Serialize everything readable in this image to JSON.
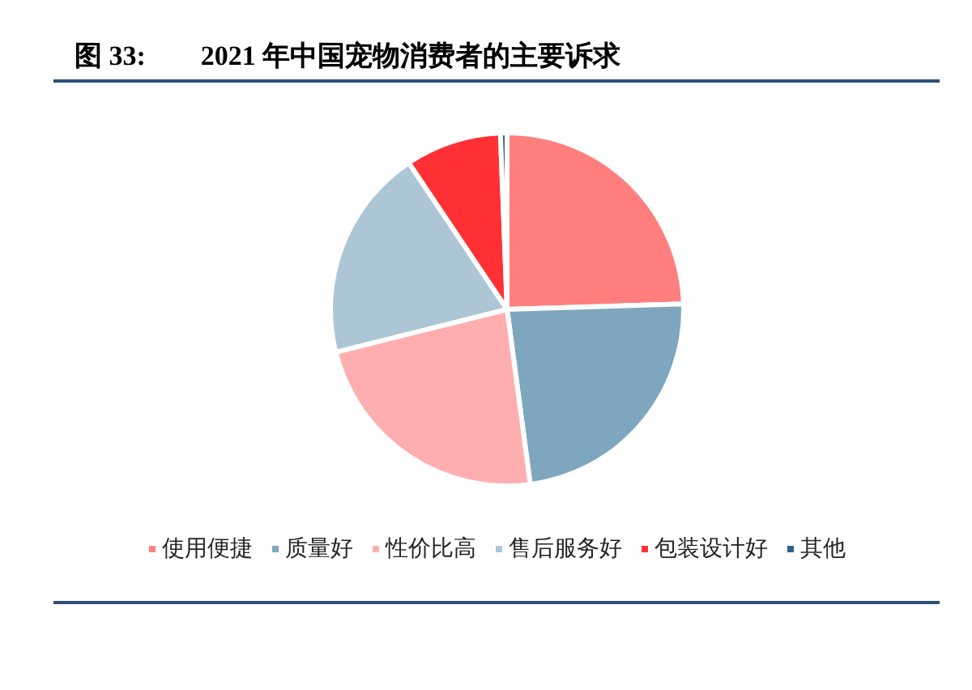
{
  "chart_data": {
    "type": "pie",
    "title": "图 33:        2021 年中国宠物消费者的主要诉求",
    "categories": [
      "使用便捷",
      "质量好",
      "性价比高",
      "售后服务好",
      "包装设计好",
      "其他"
    ],
    "values": [
      24.5,
      23.4,
      23.2,
      19.5,
      8.8,
      0.6
    ],
    "colors": [
      "#ff7f7f",
      "#7fa6bf",
      "#ffaeb0",
      "#adc6d6",
      "#ff3033",
      "#2f5f87"
    ],
    "legend": "bottom"
  }
}
